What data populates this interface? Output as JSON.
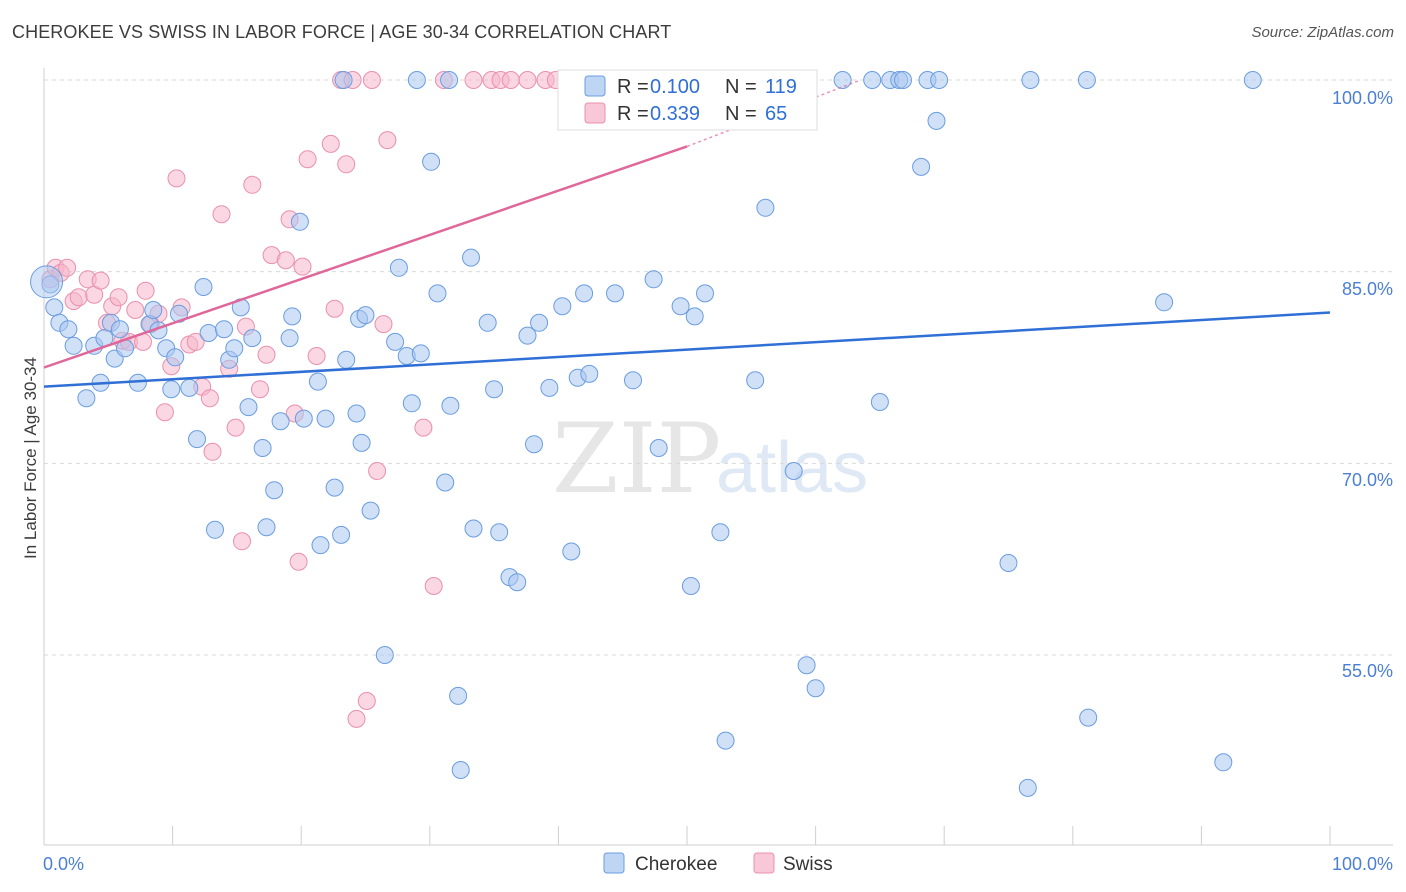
{
  "title": "CHEROKEE VS SWISS IN LABOR FORCE | AGE 30-34 CORRELATION CHART",
  "source": "Source: ZipAtlas.com",
  "watermark": {
    "zip": "ZIP",
    "atlas": "atlas"
  },
  "colors": {
    "cherokee_fill": "#a9c7f0",
    "cherokee_stroke": "#6a9de0",
    "cherokee_line": "#2f6fd6",
    "swiss_fill": "#f6b6cb",
    "swiss_stroke": "#e990ad",
    "swiss_line": "#e0679a",
    "tick_text": "#4a7fd4",
    "grid": "#d9d9d9"
  },
  "legend": {
    "rows": [
      {
        "r_label": "R =",
        "r_value": "0.100",
        "n_label": "N =",
        "n_value": "119"
      },
      {
        "r_label": "R =",
        "r_value": "0.339",
        "n_label": "N =",
        "n_value": "65"
      }
    ]
  },
  "bottom_legend": [
    "Cherokee",
    "Swiss"
  ],
  "chart_data": {
    "type": "scatter",
    "title": "CHEROKEE VS SWISS IN LABOR FORCE | AGE 30-34 CORRELATION CHART",
    "xlabel": "",
    "ylabel": "In Labor Force | Age 30-34",
    "xlim": [
      0,
      100
    ],
    "ylim": [
      39,
      102
    ],
    "x_tick_labels": [
      "0.0%",
      "100.0%"
    ],
    "y_ticks": [
      100,
      85,
      70,
      55
    ],
    "y_tick_labels": [
      "100.0%",
      "85.0%",
      "70.0%",
      "55.0%"
    ],
    "grid": true,
    "legend_position": "top-center",
    "series": [
      {
        "name": "Cherokee",
        "r": 0.1,
        "n": 119,
        "trend": {
          "x": [
            0,
            100
          ],
          "y": [
            76.0,
            81.8
          ]
        },
        "points": [
          [
            0.5,
            84.0
          ],
          [
            0.8,
            82.2
          ],
          [
            1.2,
            81.0
          ],
          [
            1.9,
            80.5
          ],
          [
            2.3,
            79.2
          ],
          [
            3.3,
            75.1
          ],
          [
            3.9,
            79.2
          ],
          [
            4.4,
            76.3
          ],
          [
            4.7,
            79.8
          ],
          [
            5.2,
            81.0
          ],
          [
            5.5,
            78.2
          ],
          [
            5.9,
            80.5
          ],
          [
            6.3,
            79.0
          ],
          [
            7.3,
            76.3
          ],
          [
            8.2,
            80.9
          ],
          [
            8.5,
            82.0
          ],
          [
            8.9,
            80.4
          ],
          [
            9.5,
            79.0
          ],
          [
            9.9,
            75.8
          ],
          [
            10.2,
            78.3
          ],
          [
            10.5,
            81.7
          ],
          [
            11.3,
            75.9
          ],
          [
            11.9,
            71.9
          ],
          [
            12.4,
            83.8
          ],
          [
            12.8,
            80.2
          ],
          [
            13.3,
            64.8
          ],
          [
            14.0,
            80.5
          ],
          [
            14.4,
            78.1
          ],
          [
            14.8,
            79.0
          ],
          [
            15.3,
            82.2
          ],
          [
            15.9,
            74.4
          ],
          [
            16.2,
            79.8
          ],
          [
            17.0,
            71.2
          ],
          [
            17.3,
            65.0
          ],
          [
            17.9,
            67.9
          ],
          [
            18.4,
            73.3
          ],
          [
            19.1,
            79.8
          ],
          [
            19.3,
            81.5
          ],
          [
            19.9,
            88.9
          ],
          [
            20.2,
            73.5
          ],
          [
            21.3,
            76.4
          ],
          [
            21.5,
            63.6
          ],
          [
            21.9,
            73.5
          ],
          [
            22.6,
            68.1
          ],
          [
            23.1,
            64.4
          ],
          [
            23.5,
            78.1
          ],
          [
            24.3,
            73.9
          ],
          [
            24.5,
            81.3
          ],
          [
            24.7,
            71.6
          ],
          [
            25.0,
            81.6
          ],
          [
            25.4,
            66.3
          ],
          [
            26.5,
            55.0
          ],
          [
            27.3,
            79.5
          ],
          [
            27.6,
            85.3
          ],
          [
            28.2,
            78.4
          ],
          [
            28.6,
            74.7
          ],
          [
            29.3,
            78.6
          ],
          [
            30.1,
            93.6
          ],
          [
            30.6,
            83.3
          ],
          [
            31.2,
            68.5
          ],
          [
            31.6,
            74.5
          ],
          [
            32.2,
            51.8
          ],
          [
            32.4,
            46.0
          ],
          [
            33.2,
            86.1
          ],
          [
            33.4,
            64.9
          ],
          [
            34.5,
            81.0
          ],
          [
            35.0,
            75.8
          ],
          [
            35.4,
            64.6
          ],
          [
            36.2,
            61.1
          ],
          [
            36.8,
            60.7
          ],
          [
            37.6,
            80.0
          ],
          [
            38.1,
            71.5
          ],
          [
            38.5,
            81.0
          ],
          [
            39.3,
            75.9
          ],
          [
            40.3,
            82.3
          ],
          [
            41.0,
            63.1
          ],
          [
            41.5,
            76.7
          ],
          [
            42.0,
            83.3
          ],
          [
            42.4,
            77.0
          ],
          [
            44.4,
            83.3
          ],
          [
            45.8,
            76.5
          ],
          [
            47.4,
            84.4
          ],
          [
            47.8,
            71.2
          ],
          [
            49.5,
            82.3
          ],
          [
            50.3,
            60.4
          ],
          [
            50.6,
            81.5
          ],
          [
            51.4,
            83.3
          ],
          [
            52.6,
            64.6
          ],
          [
            53.0,
            48.3
          ],
          [
            55.3,
            76.5
          ],
          [
            56.1,
            90.0
          ],
          [
            58.3,
            69.4
          ],
          [
            59.3,
            54.2
          ],
          [
            60.0,
            52.4
          ],
          [
            65.0,
            74.8
          ],
          [
            68.2,
            93.2
          ],
          [
            69.4,
            96.8
          ],
          [
            75.0,
            62.2
          ],
          [
            76.5,
            44.6
          ],
          [
            81.2,
            50.1
          ],
          [
            87.1,
            82.6
          ],
          [
            91.7,
            46.6
          ],
          [
            23.3,
            100.0
          ],
          [
            29.0,
            100.0
          ],
          [
            31.5,
            100.0
          ],
          [
            42.6,
            100.0
          ],
          [
            44.0,
            100.0
          ],
          [
            50.7,
            100.0
          ],
          [
            52.3,
            100.0
          ],
          [
            62.1,
            100.0
          ],
          [
            64.4,
            100.0
          ],
          [
            65.8,
            100.0
          ],
          [
            66.5,
            100.0
          ],
          [
            66.8,
            100.0
          ],
          [
            68.7,
            100.0
          ],
          [
            69.6,
            100.0
          ],
          [
            76.7,
            100.0
          ],
          [
            81.1,
            100.0
          ],
          [
            94.0,
            100.0
          ]
        ]
      },
      {
        "name": "Swiss",
        "r": 0.339,
        "n": 65,
        "trend_solid": {
          "x": [
            0,
            50.0
          ],
          "y": [
            77.5,
            94.8
          ]
        },
        "trend_dashed": {
          "x": [
            50.0,
            63.5
          ],
          "y": [
            94.8,
            100.0
          ]
        },
        "points": [
          [
            0.5,
            84.4
          ],
          [
            0.9,
            85.3
          ],
          [
            1.3,
            84.9
          ],
          [
            1.8,
            85.3
          ],
          [
            2.3,
            82.7
          ],
          [
            2.7,
            83.0
          ],
          [
            3.4,
            84.4
          ],
          [
            3.9,
            83.2
          ],
          [
            4.4,
            84.3
          ],
          [
            4.9,
            81.0
          ],
          [
            5.3,
            82.3
          ],
          [
            5.8,
            83.0
          ],
          [
            6.1,
            79.6
          ],
          [
            6.6,
            79.5
          ],
          [
            7.1,
            82.0
          ],
          [
            7.7,
            79.5
          ],
          [
            7.9,
            83.5
          ],
          [
            8.3,
            80.9
          ],
          [
            8.9,
            81.7
          ],
          [
            9.4,
            74.0
          ],
          [
            9.9,
            77.6
          ],
          [
            10.3,
            92.3
          ],
          [
            10.7,
            82.2
          ],
          [
            11.3,
            79.3
          ],
          [
            11.8,
            79.5
          ],
          [
            12.3,
            76.0
          ],
          [
            12.9,
            75.1
          ],
          [
            13.1,
            70.9
          ],
          [
            13.8,
            89.5
          ],
          [
            14.4,
            77.4
          ],
          [
            14.9,
            72.8
          ],
          [
            15.4,
            63.9
          ],
          [
            15.7,
            80.7
          ],
          [
            16.2,
            91.8
          ],
          [
            16.8,
            75.8
          ],
          [
            17.3,
            78.5
          ],
          [
            17.7,
            86.3
          ],
          [
            18.8,
            85.9
          ],
          [
            19.1,
            89.1
          ],
          [
            19.5,
            73.9
          ],
          [
            19.8,
            62.3
          ],
          [
            20.1,
            85.4
          ],
          [
            20.5,
            93.8
          ],
          [
            21.2,
            78.4
          ],
          [
            22.3,
            95.0
          ],
          [
            22.6,
            82.1
          ],
          [
            23.1,
            100.0
          ],
          [
            23.5,
            93.4
          ],
          [
            24.0,
            100.0
          ],
          [
            24.3,
            50.0
          ],
          [
            25.1,
            51.4
          ],
          [
            25.5,
            100.0
          ],
          [
            25.9,
            69.4
          ],
          [
            26.4,
            80.9
          ],
          [
            26.7,
            95.3
          ],
          [
            30.3,
            60.4
          ],
          [
            29.5,
            72.8
          ],
          [
            31.1,
            100.0
          ],
          [
            33.4,
            100.0
          ],
          [
            34.8,
            100.0
          ],
          [
            35.5,
            100.0
          ],
          [
            36.3,
            100.0
          ],
          [
            37.6,
            100.0
          ],
          [
            39.0,
            100.0
          ],
          [
            39.8,
            100.0
          ]
        ]
      }
    ]
  }
}
